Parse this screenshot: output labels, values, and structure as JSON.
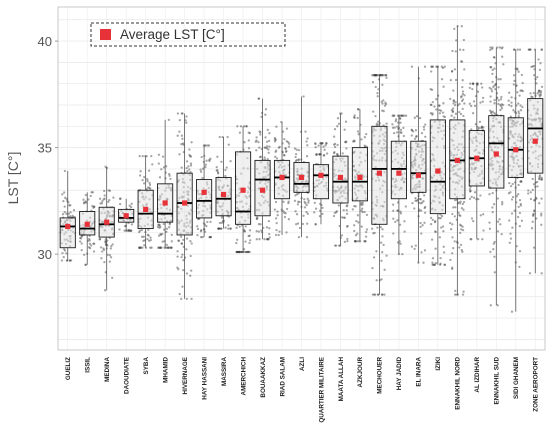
{
  "chart_data": {
    "type": "box",
    "ylabel": "LST [C°]",
    "xlabel": "",
    "ylim": [
      25.5,
      41.6
    ],
    "yticks": [
      30,
      35,
      40
    ],
    "grid": true,
    "legend": {
      "label": "Average LST [C°]",
      "placement": "top-left",
      "marker": "red-square"
    },
    "colors": {
      "mean_marker": "#e8323a",
      "box_fill": "#e3e3e3",
      "box_stroke": "#1a1a1a",
      "median": "#000000",
      "points": "#3a3a3a",
      "grid": "#e6e6e6"
    },
    "categories": [
      "GUELIZ",
      "ISSIL",
      "MEDINA",
      "DAOUDIATE",
      "SYBA",
      "MHAMID",
      "HIVERNAGE",
      "HAY HASSANI",
      "MASSIRA",
      "AMERCHICH",
      "BOUAAKKAZ",
      "RIAD SALAM",
      "AZLI",
      "QUARTIER MILITAIRE",
      "MAATA ALLAH",
      "AZKJOUR",
      "MECHOUER",
      "HAY JADID",
      "EL INARA",
      "IZIKI",
      "ENNAKHIL NORD",
      "AL IZDIHAR",
      "ENNAKHIL SUD",
      "SIDI GHANEM",
      "ZONE AEROPORT"
    ],
    "boxes": [
      {
        "q1": 30.3,
        "median": 31.3,
        "q3": 31.7,
        "mean": 31.3,
        "min": 29.7,
        "max": 33.9
      },
      {
        "q1": 30.9,
        "median": 31.2,
        "q3": 32.0,
        "mean": 31.4,
        "min": 29.5,
        "max": 32.9
      },
      {
        "q1": 30.8,
        "median": 31.4,
        "q3": 32.2,
        "mean": 31.5,
        "min": 28.3,
        "max": 34.1
      },
      {
        "q1": 31.5,
        "median": 31.7,
        "q3": 32.1,
        "mean": 31.8,
        "min": 31.1,
        "max": 32.6
      },
      {
        "q1": 31.2,
        "median": 31.9,
        "q3": 33.0,
        "mean": 32.1,
        "min": 30.3,
        "max": 34.6
      },
      {
        "q1": 31.5,
        "median": 31.9,
        "q3": 33.3,
        "mean": 32.4,
        "min": 30.3,
        "max": 36.3
      },
      {
        "q1": 30.9,
        "median": 32.4,
        "q3": 33.8,
        "mean": 32.4,
        "min": 27.9,
        "max": 36.6
      },
      {
        "q1": 31.7,
        "median": 32.5,
        "q3": 33.5,
        "mean": 32.9,
        "min": 30.8,
        "max": 35.1
      },
      {
        "q1": 31.8,
        "median": 32.6,
        "q3": 33.6,
        "mean": 32.8,
        "min": 31.2,
        "max": 35.5
      },
      {
        "q1": 31.4,
        "median": 32.0,
        "q3": 34.8,
        "mean": 33.0,
        "min": 30.1,
        "max": 36.0
      },
      {
        "q1": 31.8,
        "median": 33.5,
        "q3": 34.4,
        "mean": 33.0,
        "min": 30.7,
        "max": 37.3
      },
      {
        "q1": 32.6,
        "median": 33.6,
        "q3": 34.4,
        "mean": 33.6,
        "min": 30.9,
        "max": 36.2
      },
      {
        "q1": 32.9,
        "median": 33.3,
        "q3": 34.3,
        "mean": 33.6,
        "min": 30.8,
        "max": 37.4
      },
      {
        "q1": 32.6,
        "median": 33.7,
        "q3": 34.2,
        "mean": 33.7,
        "min": 31.4,
        "max": 35.2
      },
      {
        "q1": 32.4,
        "median": 33.4,
        "q3": 34.6,
        "mean": 33.6,
        "min": 30.4,
        "max": 36.6
      },
      {
        "q1": 32.5,
        "median": 33.4,
        "q3": 35.0,
        "mean": 33.6,
        "min": 30.6,
        "max": 36.8
      },
      {
        "q1": 31.4,
        "median": 34.0,
        "q3": 36.0,
        "mean": 33.8,
        "min": 28.1,
        "max": 38.4
      },
      {
        "q1": 32.6,
        "median": 34.0,
        "q3": 35.3,
        "mean": 33.8,
        "min": 30.0,
        "max": 36.5
      },
      {
        "q1": 32.9,
        "median": 33.8,
        "q3": 35.3,
        "mean": 33.7,
        "min": 29.6,
        "max": 38.8
      },
      {
        "q1": 31.9,
        "median": 33.4,
        "q3": 36.3,
        "mean": 33.9,
        "min": 29.5,
        "max": 38.8
      },
      {
        "q1": 32.6,
        "median": 34.4,
        "q3": 36.3,
        "mean": 34.4,
        "min": 28.1,
        "max": 40.7
      },
      {
        "q1": 33.2,
        "median": 34.5,
        "q3": 35.8,
        "mean": 34.5,
        "min": 30.7,
        "max": 38.0
      },
      {
        "q1": 33.1,
        "median": 35.2,
        "q3": 36.5,
        "mean": 34.7,
        "min": 27.6,
        "max": 39.7
      },
      {
        "q1": 33.6,
        "median": 34.9,
        "q3": 36.4,
        "mean": 34.9,
        "min": 27.3,
        "max": 39.6
      },
      {
        "q1": 33.8,
        "median": 35.9,
        "q3": 37.3,
        "mean": 35.3,
        "min": 29.1,
        "max": 39.6
      }
    ]
  }
}
